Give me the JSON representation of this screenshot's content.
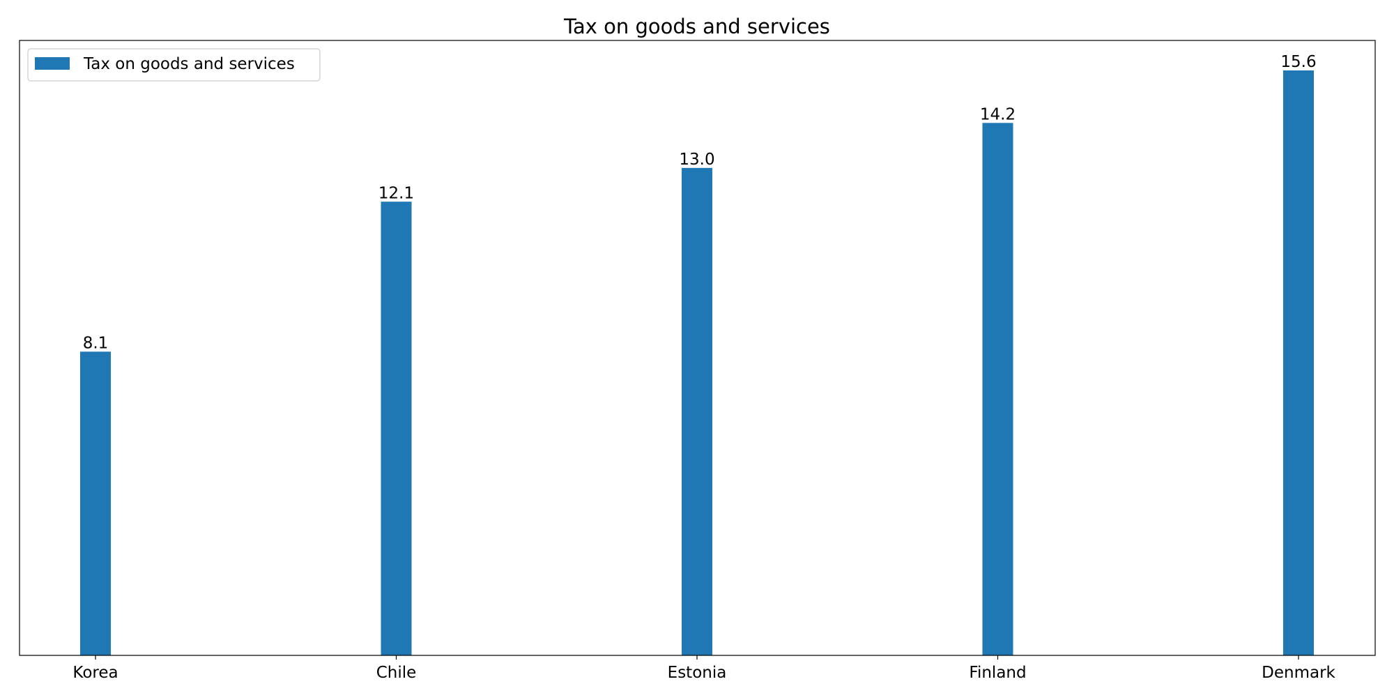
{
  "chart_data": {
    "type": "bar",
    "title": "Tax on goods and services",
    "categories": [
      "Korea",
      "Chile",
      "Estonia",
      "Finland",
      "Denmark"
    ],
    "series": [
      {
        "name": "Tax on goods and services",
        "values": [
          8.1,
          12.1,
          13.0,
          14.2,
          15.6
        ],
        "color": "#1f77b4"
      }
    ],
    "data_labels": [
      "8.1",
      "12.1",
      "13.0",
      "14.2",
      "15.6"
    ],
    "xlabel": "",
    "ylabel": "",
    "ylim": [
      0,
      16.4
    ],
    "y_ticks_visible": false,
    "grid": false,
    "legend_position": "top-left"
  }
}
